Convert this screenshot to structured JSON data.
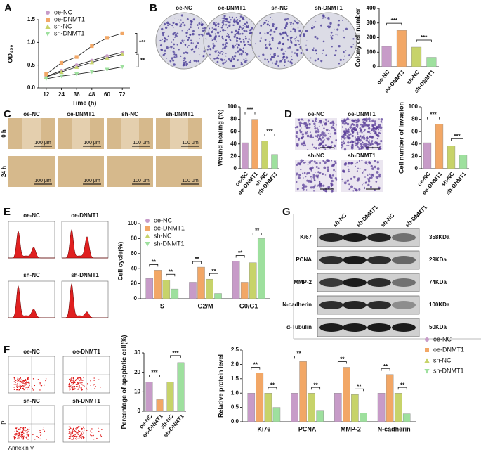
{
  "letters": [
    "A",
    "B",
    "C",
    "D",
    "E",
    "F",
    "G"
  ],
  "colony_labels": [
    "oe-NC",
    "oe-DNMT1",
    "sh-NC",
    "sh-DNMT1"
  ],
  "wound": {
    "columns": [
      "oe-NC",
      "oe-DNMT1",
      "sh-NC",
      "sh-DNMT1"
    ],
    "rows": [
      "0 h",
      "24 h"
    ],
    "scale": "100 μm"
  },
  "invasion_labels": [
    "oe-NC",
    "oe-DNMT1",
    "sh-NC",
    "sh-DNMT1"
  ],
  "flow_labels": [
    "oe-NC",
    "oe-DNMT1",
    "sh-NC",
    "sh-DNMT1"
  ],
  "apoptosis": {
    "labels": [
      "oe-NC",
      "oe-DNMT1",
      "sh-NC",
      "sh-DNMT1"
    ],
    "y_axis": "PI",
    "x_axis": "Annexin V"
  },
  "blot": {
    "lanes": [
      "sh-NC",
      "sh-DNMT1",
      "sh-NC",
      "sh-DNMT1"
    ],
    "proteins": [
      "Ki67",
      "PCNA",
      "MMP-2",
      "N-cadherin",
      "α-Tubulin"
    ],
    "sizes": [
      "358KDa",
      "29KDa",
      "74KDa",
      "100KDa",
      "50KDa"
    ]
  },
  "chart_data": [
    {
      "type": "line",
      "y_label": "OD₄₅₀",
      "x_label": "Time (h)",
      "x": [
        12,
        24,
        36,
        48,
        60,
        72
      ],
      "xlim": [
        6,
        78
      ],
      "xticks": [
        12,
        24,
        36,
        48,
        60,
        72
      ],
      "ylim": [
        0,
        1.5
      ],
      "yticks": [
        {
          "value": 0,
          "label": "0.0"
        },
        0.5,
        {
          "value": 1,
          "label": "1.0"
        },
        1.5
      ],
      "series": [
        {
          "name": "oe-NC",
          "color": "#c79bc8",
          "values": [
            0.25,
            0.38,
            0.5,
            0.6,
            0.7,
            0.78
          ]
        },
        {
          "name": "oe-DNMT1",
          "color": "#f2a766",
          "values": [
            0.3,
            0.55,
            0.68,
            0.92,
            1.1,
            1.2
          ]
        },
        {
          "name": "sh-NC",
          "color": "#c7d36a",
          "values": [
            0.24,
            0.35,
            0.46,
            0.56,
            0.66,
            0.74
          ]
        },
        {
          "name": "sh-DNMT1",
          "color": "#9ee09e",
          "values": [
            0.2,
            0.26,
            0.3,
            0.35,
            0.4,
            0.46
          ]
        }
      ],
      "annotations": [
        "***",
        "**"
      ]
    },
    {
      "type": "bar",
      "y_label": "Colony cell number",
      "categories": [
        "oe-NC",
        "oe-DNMT1",
        "sh-NC",
        "sh-DNMT1"
      ],
      "values": [
        140,
        250,
        135,
        65
      ],
      "colors": [
        "#c79bc8",
        "#f2a766",
        "#c7d36a",
        "#9ee09e"
      ],
      "ylim": [
        0,
        400
      ],
      "yticks": [
        0,
        100,
        200,
        300,
        400
      ],
      "annotations": [
        "***",
        "***"
      ]
    },
    {
      "type": "bar",
      "y_label": "Wound healing (%)",
      "categories": [
        "oe-NC",
        "oe-DNMT1",
        "sh-NC",
        "sh-DNMT1"
      ],
      "values": [
        42,
        80,
        45,
        23
      ],
      "colors": [
        "#c79bc8",
        "#f2a766",
        "#c7d36a",
        "#9ee09e"
      ],
      "ylim": [
        0,
        100
      ],
      "yticks": [
        0,
        20,
        40,
        60,
        80,
        100
      ],
      "annotations": [
        "***",
        "***"
      ]
    },
    {
      "type": "bar",
      "y_label": "Cell number of invasion",
      "categories": [
        "oe-NC",
        "oe-DNMT1",
        "sh-NC",
        "sh-DNMT1"
      ],
      "values": [
        42,
        72,
        37,
        22
      ],
      "colors": [
        "#c79bc8",
        "#f2a766",
        "#c7d36a",
        "#9ee09e"
      ],
      "ylim": [
        0,
        100
      ],
      "yticks": [
        0,
        20,
        40,
        60,
        80,
        100
      ],
      "annotations": [
        "***",
        "***"
      ]
    },
    {
      "type": "bar",
      "y_label": "Cell cycle(%)",
      "categories": [
        "S",
        "G2/M",
        "G0/G1"
      ],
      "ylim": [
        0,
        100
      ],
      "yticks": [
        0,
        20,
        40,
        60,
        80,
        100
      ],
      "series": [
        {
          "name": "oe-NC",
          "color": "#c79bc8",
          "values": [
            27,
            22,
            50
          ]
        },
        {
          "name": "oe-DNMT1",
          "color": "#f2a766",
          "values": [
            38,
            42,
            22
          ]
        },
        {
          "name": "sh-NC",
          "color": "#c7d36a",
          "values": [
            25,
            26,
            48
          ]
        },
        {
          "name": "sh-DNMT1",
          "color": "#9ee09e",
          "values": [
            13,
            7,
            80
          ]
        }
      ],
      "annotations": [
        [
          "**",
          "**"
        ],
        [
          "**",
          "**"
        ],
        [
          "**",
          "**"
        ]
      ]
    },
    {
      "type": "bar",
      "y_label": "Percentage of apoptotic cell(%)",
      "categories": [
        "oe-NC",
        "oe-DNMT1",
        "sh-NC",
        "sh-DNMT1"
      ],
      "values": [
        15,
        6,
        15,
        25
      ],
      "colors": [
        "#c79bc8",
        "#f2a766",
        "#c7d36a",
        "#9ee09e"
      ],
      "ylim": [
        0,
        30
      ],
      "yticks": [
        0,
        10,
        20,
        30
      ],
      "annotations": [
        "***",
        "***"
      ]
    },
    {
      "type": "bar",
      "y_label": "Relative protein level",
      "categories": [
        "Ki76",
        "PCNA",
        "MMP-2",
        "N-cadherin"
      ],
      "ylim": [
        0,
        2.5
      ],
      "yticks": [
        {
          "value": 0,
          "label": "0.0"
        },
        0.5,
        {
          "value": 1,
          "label": "1.0"
        },
        1.5,
        {
          "value": 2,
          "label": "2.0"
        },
        2.5
      ],
      "series": [
        {
          "name": "oe-NC",
          "color": "#c79bc8",
          "values": [
            1,
            1,
            1,
            1
          ]
        },
        {
          "name": "oe-DNMT1",
          "color": "#f2a766",
          "values": [
            1.7,
            2.1,
            1.9,
            1.65
          ]
        },
        {
          "name": "sh-NC",
          "color": "#c7d36a",
          "values": [
            1,
            1,
            0.95,
            1
          ]
        },
        {
          "name": "sh-DNMT1",
          "color": "#9ee09e",
          "values": [
            0.5,
            0.4,
            0.3,
            0.28
          ]
        }
      ],
      "annotations": [
        [
          "**",
          "**"
        ],
        [
          "**",
          "**"
        ],
        [
          "**",
          "**"
        ],
        [
          "**",
          "**"
        ]
      ]
    }
  ]
}
